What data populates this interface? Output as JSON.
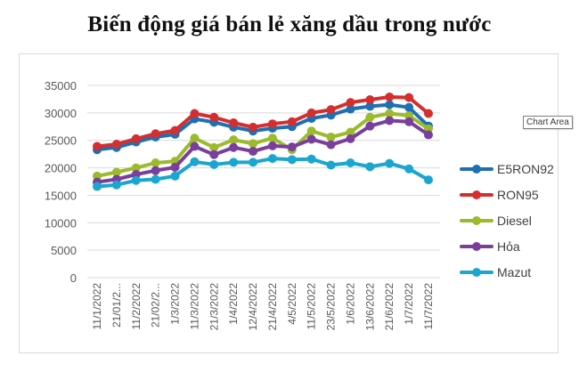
{
  "title": "Biến động giá bán lẻ xăng dầu trong nước",
  "tooltip": "Chart Area",
  "chart_data": {
    "type": "line",
    "title": "Biến động giá bán lẻ xăng dầu trong nước",
    "xlabel": "",
    "ylabel": "",
    "ylim": [
      0,
      35000
    ],
    "yticks": [
      0,
      5000,
      10000,
      15000,
      20000,
      25000,
      30000,
      35000
    ],
    "grid": true,
    "legend_position": "right",
    "categories": [
      "11/1/2022",
      "21/01/2...",
      "11/2/2022",
      "21/02/2...",
      "1/3/2022",
      "11/3/2022",
      "21/3/2022",
      "1/4/2022",
      "12/4/2022",
      "21/4/2022",
      "4/5/2022",
      "11/5/2022",
      "23/5/2022",
      "1/6/2022",
      "13/6/2022",
      "21/6/2022",
      "1/7/2022",
      "11/7/2022"
    ],
    "series": [
      {
        "name": "E5RON92",
        "color": "#1f6fb4",
        "values": [
          23300,
          23700,
          24700,
          25600,
          26100,
          28900,
          28300,
          27400,
          26700,
          27200,
          27500,
          29000,
          29600,
          30700,
          31200,
          31500,
          31000,
          27600
        ]
      },
      {
        "name": "RON95",
        "color": "#d42e2e",
        "values": [
          23900,
          24300,
          25300,
          26200,
          26800,
          29900,
          29200,
          28200,
          27400,
          28000,
          28400,
          30000,
          30600,
          31900,
          32400,
          32900,
          32800,
          29900
        ]
      },
      {
        "name": "Diesel",
        "color": "#9bbb2c",
        "values": [
          18500,
          19200,
          20000,
          20900,
          21200,
          25400,
          23700,
          25100,
          24400,
          25400,
          23300,
          26700,
          25600,
          26500,
          29200,
          29900,
          29500,
          27100
        ]
      },
      {
        "name": "Hỏa",
        "color": "#7a3f9d",
        "values": [
          17400,
          17900,
          18800,
          19500,
          20100,
          23900,
          22400,
          23700,
          23000,
          24000,
          23800,
          25200,
          24200,
          25300,
          27600,
          28600,
          28400,
          26000
        ]
      },
      {
        "name": "Mazut",
        "color": "#1aa6cf",
        "values": [
          16600,
          16900,
          17700,
          17900,
          18500,
          21100,
          20600,
          21000,
          21000,
          21700,
          21500,
          21600,
          20500,
          20900,
          20200,
          20800,
          19800,
          17800
        ]
      }
    ]
  }
}
